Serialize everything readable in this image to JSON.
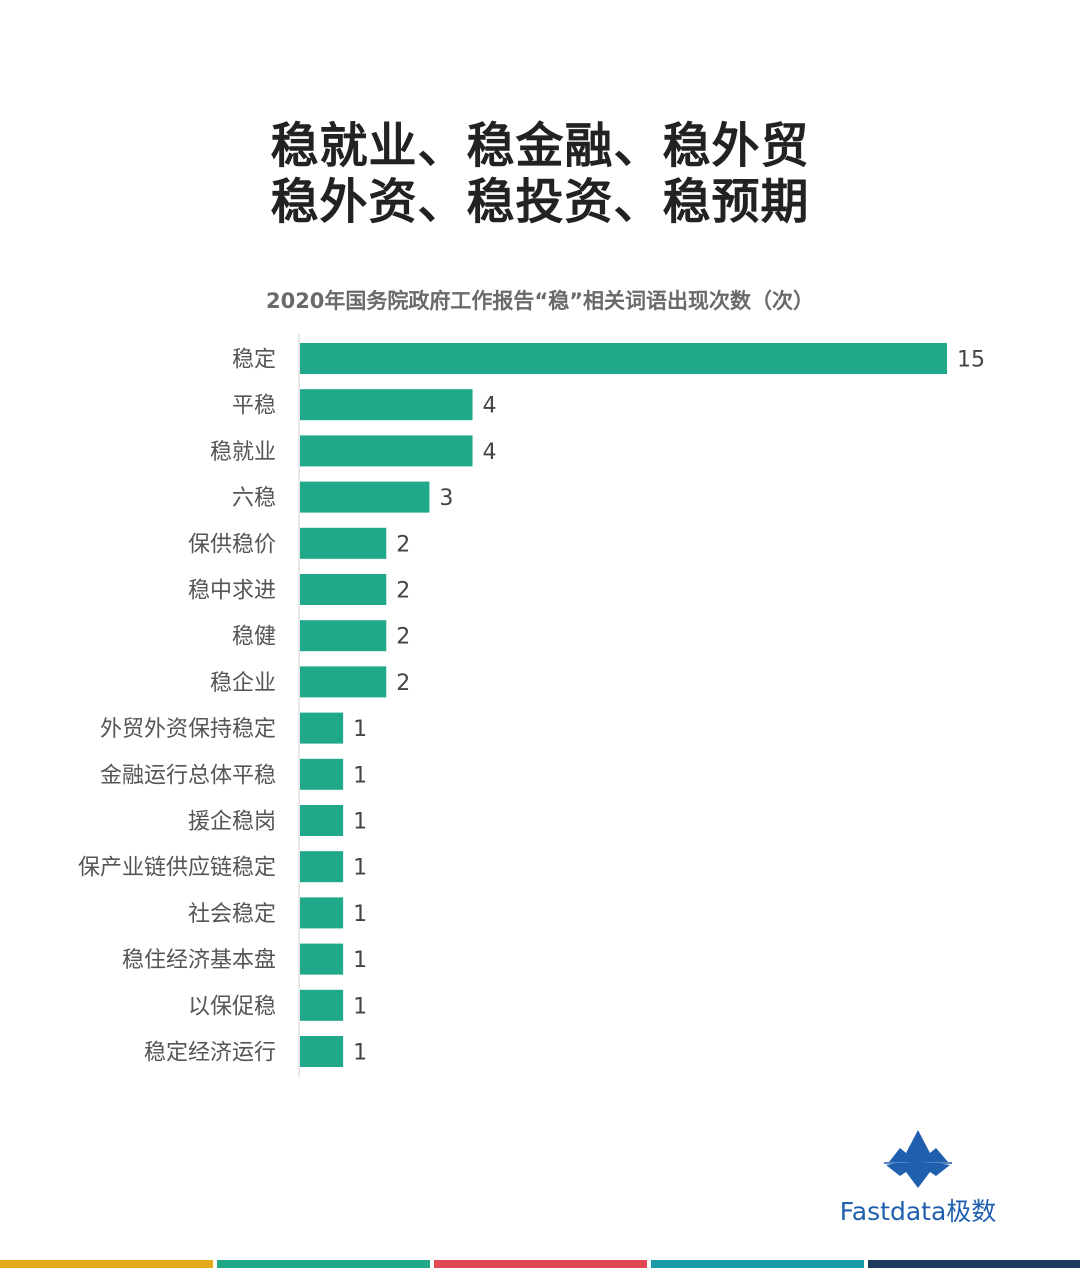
{
  "headline": {
    "line1": "稳就业、稳金融、稳外贸",
    "line2": "稳外资、稳投资、稳预期"
  },
  "chart_data": {
    "type": "bar",
    "orientation": "horizontal",
    "title": "2020年国务院政府工作报告“稳”相关词语出现次数（次）",
    "categories": [
      "稳定",
      "平稳",
      "稳就业",
      "六稳",
      "保供稳价",
      "稳中求进",
      "稳健",
      "稳企业",
      "外贸外资保持稳定",
      "金融运行总体平稳",
      "援企稳岗",
      "保产业链供应链稳定",
      "社会稳定",
      "稳住经济基本盘",
      "以保促稳",
      "稳定经济运行"
    ],
    "values": [
      15,
      4,
      4,
      3,
      2,
      2,
      2,
      2,
      1,
      1,
      1,
      1,
      1,
      1,
      1,
      1
    ],
    "xlim": [
      0,
      15
    ],
    "bar_color": "#1fa88a",
    "grid": false,
    "data_labels": true
  },
  "logo": {
    "text": "Fastdata极数",
    "icon": "iceberg-icon",
    "color": "#1f5fae"
  },
  "footer": {
    "stripe_colors": [
      "#e3a81c",
      "#1fa88a",
      "#e04a55",
      "#1a9aa4",
      "#1b3a5c"
    ]
  }
}
